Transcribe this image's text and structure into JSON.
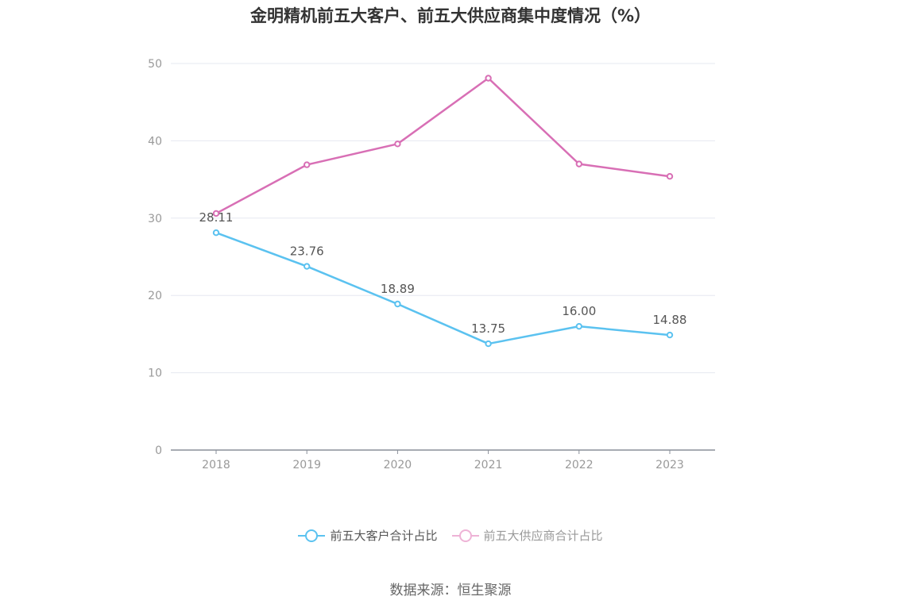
{
  "chart_data": {
    "type": "line",
    "title": "金明精机前五大客户、前五大供应商集中度情况（%）",
    "categories": [
      "2018",
      "2019",
      "2020",
      "2021",
      "2022",
      "2023"
    ],
    "ylim": [
      0,
      50
    ],
    "yticks": [
      0,
      10,
      20,
      30,
      40,
      50
    ],
    "grid": true,
    "legend_position": "bottom",
    "series": [
      {
        "name": "前五大客户合计占比",
        "color": "#5bc2f0",
        "values": [
          28.11,
          23.76,
          18.89,
          13.75,
          16.0,
          14.88
        ],
        "labels": [
          "28.11",
          "23.76",
          "18.89",
          "13.75",
          "16.00",
          "14.88"
        ],
        "show_labels": true
      },
      {
        "name": "前五大供应商合计占比",
        "color": "#d86fb5",
        "values": [
          30.6,
          36.9,
          39.6,
          48.1,
          37.0,
          35.4
        ],
        "show_labels": false
      }
    ]
  },
  "source": "数据来源：恒生聚源"
}
